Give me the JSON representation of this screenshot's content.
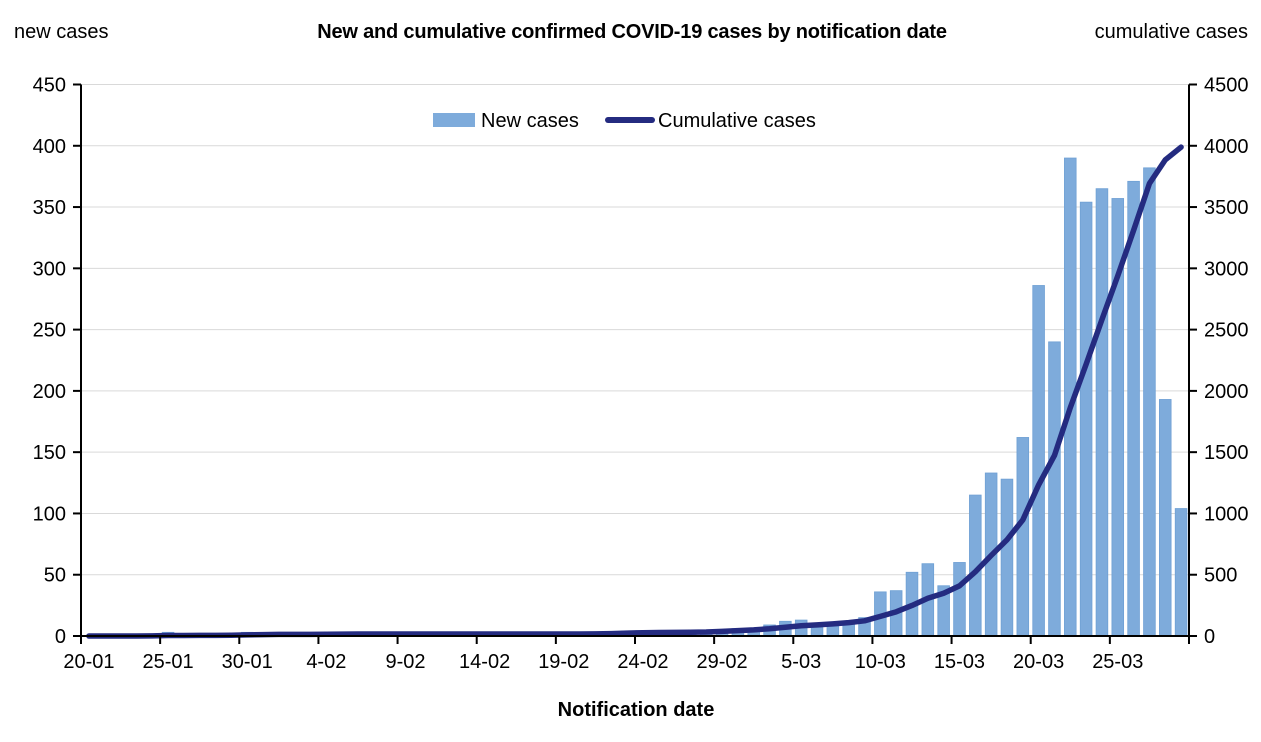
{
  "page": {
    "title": "New and cumulative confirmed COVID-19 cases by notification date",
    "left_axis_corner_label": "new cases",
    "right_axis_corner_label": "cumulative cases",
    "x_axis_title": "Notification date"
  },
  "legend": {
    "items": [
      {
        "label": "New cases",
        "marker": "bar-swatch"
      },
      {
        "label": "Cumulative cases",
        "marker": "line-swatch"
      }
    ]
  },
  "colors": {
    "bar_fill": "#7EABDB",
    "bar_edge": "#6FA0D4",
    "line": "#242B80",
    "gridline": "#D9D9D9",
    "axis": "#000000",
    "background": "#FFFFFF"
  },
  "chart_data": {
    "type": "bar+line",
    "title": "New and cumulative confirmed COVID-19 cases by notification date",
    "xlabel": "Notification date",
    "grid": "horizontal",
    "legend_position": "top-center",
    "left_axis": {
      "label": "new cases",
      "min": 0,
      "max": 450,
      "step": 50
    },
    "right_axis": {
      "label": "cumulative cases",
      "min": 0,
      "max": 4500,
      "step": 500
    },
    "x_tick_labels": [
      "20-01",
      "25-01",
      "30-01",
      "4-02",
      "9-02",
      "14-02",
      "19-02",
      "24-02",
      "29-02",
      "5-03",
      "10-03",
      "15-03",
      "20-03",
      "25-03"
    ],
    "categories": [
      "20-01",
      "21-01",
      "22-01",
      "23-01",
      "24-01",
      "25-01",
      "26-01",
      "27-01",
      "28-01",
      "29-01",
      "30-01",
      "31-01",
      "1-02",
      "2-02",
      "3-02",
      "4-02",
      "5-02",
      "6-02",
      "7-02",
      "8-02",
      "9-02",
      "10-02",
      "11-02",
      "12-02",
      "13-02",
      "14-02",
      "15-02",
      "16-02",
      "17-02",
      "18-02",
      "19-02",
      "20-02",
      "21-02",
      "22-02",
      "23-02",
      "24-02",
      "25-02",
      "26-02",
      "27-02",
      "28-02",
      "29-02",
      "1-03",
      "2-03",
      "3-03",
      "4-03",
      "5-03",
      "6-03",
      "7-03",
      "8-03",
      "9-03",
      "10-03",
      "11-03",
      "12-03",
      "13-03",
      "14-03",
      "15-03",
      "16-03",
      "17-03",
      "18-03",
      "19-03",
      "20-03",
      "21-03",
      "22-03",
      "23-03",
      "24-03",
      "25-03",
      "26-03",
      "27-03",
      "28-03",
      "29-03"
    ],
    "series": [
      {
        "name": "New cases",
        "type": "bar",
        "axis": "left",
        "color": "#7EABDB",
        "values": [
          0,
          0,
          0,
          0,
          1,
          3,
          0,
          1,
          0,
          1,
          3,
          2,
          2,
          0,
          0,
          1,
          1,
          1,
          0,
          0,
          0,
          0,
          0,
          0,
          0,
          0,
          0,
          0,
          0,
          0,
          0,
          0,
          1,
          2,
          4,
          4,
          2,
          1,
          1,
          2,
          5,
          6,
          6,
          9,
          12,
          13,
          7,
          8,
          10,
          15,
          36,
          37,
          52,
          59,
          41,
          60,
          115,
          133,
          128,
          162,
          286,
          240,
          390,
          354,
          365,
          357,
          371,
          382,
          193,
          104
        ]
      },
      {
        "name": "Cumulative cases",
        "type": "line",
        "axis": "right",
        "color": "#242B80",
        "values": [
          0,
          0,
          0,
          0,
          1,
          4,
          4,
          5,
          5,
          6,
          9,
          11,
          13,
          13,
          13,
          14,
          15,
          16,
          16,
          16,
          16,
          16,
          16,
          16,
          16,
          16,
          16,
          16,
          16,
          16,
          16,
          16,
          17,
          19,
          23,
          27,
          29,
          30,
          31,
          33,
          38,
          44,
          50,
          59,
          71,
          84,
          91,
          99,
          109,
          124,
          160,
          197,
          249,
          308,
          349,
          409,
          524,
          657,
          785,
          947,
          1233,
          1473,
          1863,
          2217,
          2582,
          2939,
          3310,
          3692,
          3885,
          3989
        ]
      }
    ]
  }
}
